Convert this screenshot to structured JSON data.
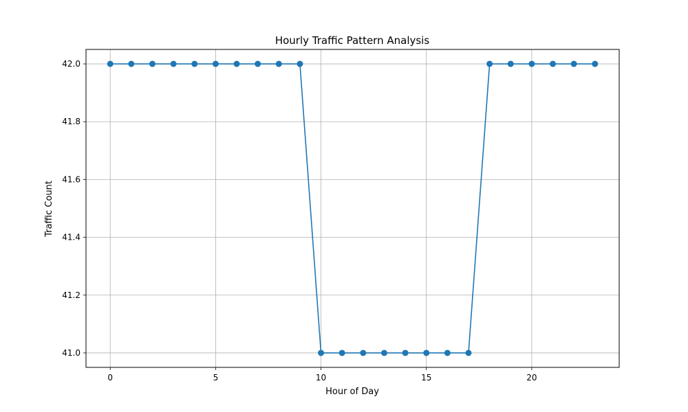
{
  "chart_data": {
    "type": "line",
    "title": "Hourly Traffic Pattern Analysis",
    "xlabel": "Hour of Day",
    "ylabel": "Traffic Count",
    "xlim": [
      -1.15,
      24.15
    ],
    "ylim": [
      40.95,
      42.05
    ],
    "xticks": [
      0,
      5,
      10,
      15,
      20
    ],
    "xtick_labels": [
      "0",
      "5",
      "10",
      "15",
      "20"
    ],
    "yticks": [
      41.0,
      41.2,
      41.4,
      41.6,
      41.8,
      42.0
    ],
    "ytick_labels": [
      "41.0",
      "41.2",
      "41.4",
      "41.6",
      "41.8",
      "42.0"
    ],
    "grid": true,
    "x": [
      0,
      1,
      2,
      3,
      4,
      5,
      6,
      7,
      8,
      9,
      10,
      11,
      12,
      13,
      14,
      15,
      16,
      17,
      18,
      19,
      20,
      21,
      22,
      23
    ],
    "series": [
      {
        "values": [
          42,
          42,
          42,
          42,
          42,
          42,
          42,
          42,
          42,
          42,
          41,
          41,
          41,
          41,
          41,
          41,
          41,
          41,
          42,
          42,
          42,
          42,
          42,
          42
        ],
        "color": "#1f77b4",
        "marker": "circle"
      }
    ]
  }
}
